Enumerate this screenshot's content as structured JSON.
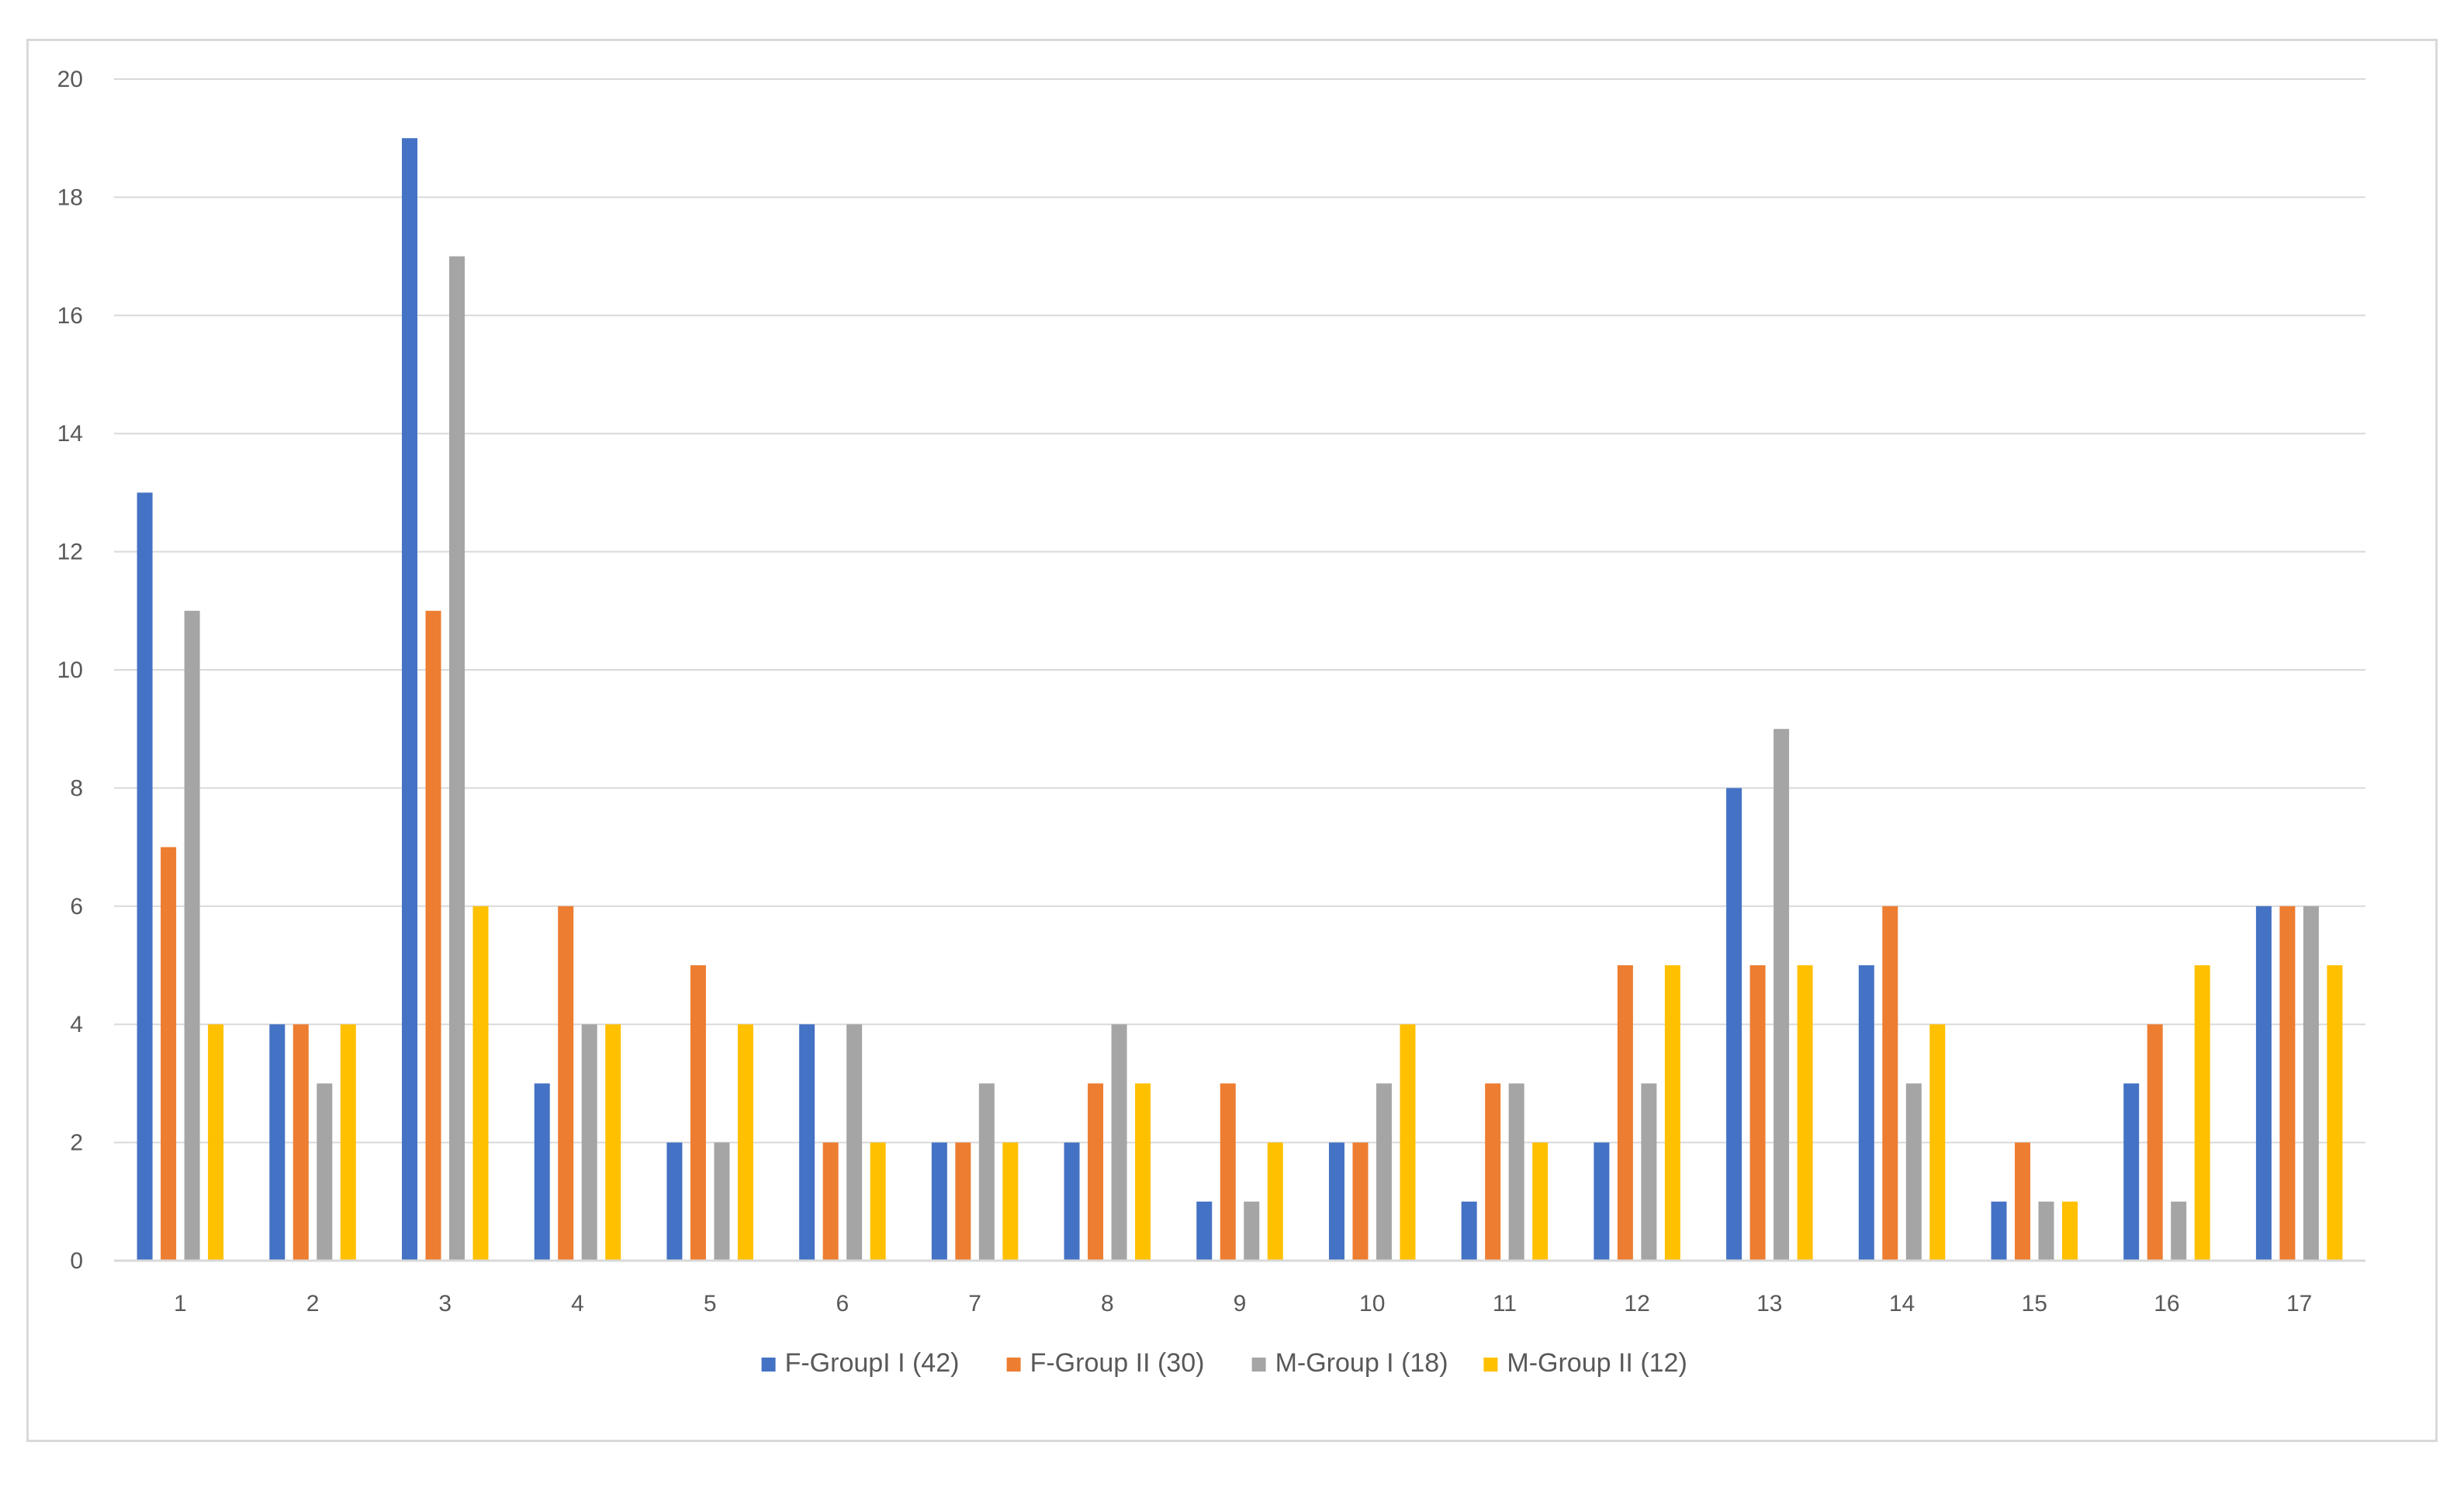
{
  "chart_data": {
    "type": "bar",
    "title": "",
    "xlabel": "",
    "ylabel": "",
    "ylim": [
      0,
      20
    ],
    "yticks": [
      0,
      2,
      4,
      6,
      8,
      10,
      12,
      14,
      16,
      18,
      20
    ],
    "grid": "horizontal",
    "legend_position": "bottom",
    "categories": [
      "1",
      "2",
      "3",
      "4",
      "5",
      "6",
      "7",
      "8",
      "9",
      "10",
      "11",
      "12",
      "13",
      "14",
      "15",
      "16",
      "17"
    ],
    "series": [
      {
        "name": "F-GroupI I (42)",
        "color": "#4472c4",
        "values": [
          13,
          4,
          19,
          3,
          2,
          4,
          2,
          2,
          1,
          2,
          1,
          2,
          8,
          5,
          1,
          3,
          6
        ]
      },
      {
        "name": "F-Group II (30)",
        "color": "#ed7d31",
        "values": [
          7,
          4,
          11,
          6,
          5,
          2,
          2,
          3,
          3,
          2,
          3,
          5,
          5,
          6,
          2,
          4,
          6
        ]
      },
      {
        "name": "M-Group I (18)",
        "color": "#a5a5a5",
        "values": [
          11,
          3,
          17,
          4,
          2,
          4,
          3,
          4,
          1,
          3,
          3,
          3,
          9,
          3,
          1,
          1,
          6
        ]
      },
      {
        "name": "M-Group II (12)",
        "color": "#ffc000",
        "values": [
          4,
          4,
          6,
          4,
          4,
          2,
          2,
          3,
          2,
          4,
          2,
          5,
          5,
          4,
          1,
          5,
          5
        ]
      }
    ]
  }
}
